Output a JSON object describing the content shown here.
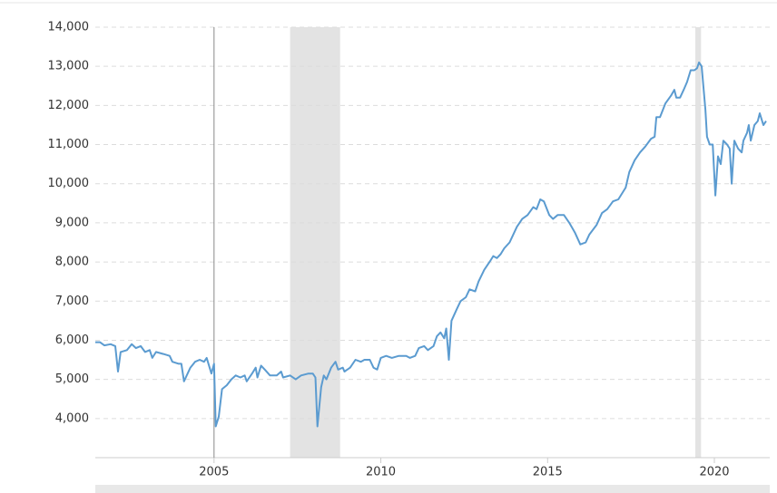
{
  "chart_data": {
    "type": "line",
    "x": [
      2001.44,
      2001.58,
      2001.71,
      2001.9,
      2002.04,
      2002.12,
      2002.2,
      2002.39,
      2002.53,
      2002.66,
      2002.8,
      2002.93,
      2003.07,
      2003.15,
      2003.26,
      2003.48,
      2003.67,
      2003.75,
      2003.94,
      2004.02,
      2004.1,
      2004.29,
      2004.43,
      2004.57,
      2004.7,
      2004.78,
      2004.92,
      2005.0,
      2005.05,
      2005.14,
      2005.24,
      2005.38,
      2005.52,
      2005.65,
      2005.79,
      2005.92,
      2005.98,
      2006.14,
      2006.25,
      2006.3,
      2006.41,
      2006.52,
      2006.68,
      2006.88,
      2007.01,
      2007.07,
      2007.28,
      2007.45,
      2007.61,
      2007.83,
      2007.96,
      2008.04,
      2008.1,
      2008.21,
      2008.29,
      2008.37,
      2008.51,
      2008.64,
      2008.72,
      2008.86,
      2008.91,
      2009.08,
      2009.24,
      2009.4,
      2009.51,
      2009.67,
      2009.78,
      2009.89,
      2010.0,
      2010.16,
      2010.33,
      2010.54,
      2010.76,
      2010.87,
      2011.03,
      2011.14,
      2011.3,
      2011.41,
      2011.58,
      2011.68,
      2011.79,
      2011.9,
      2011.96,
      2012.04,
      2012.12,
      2012.28,
      2012.39,
      2012.55,
      2012.66,
      2012.83,
      2012.93,
      2013.1,
      2013.26,
      2013.37,
      2013.48,
      2013.59,
      2013.7,
      2013.86,
      2013.97,
      2014.08,
      2014.24,
      2014.4,
      2014.57,
      2014.67,
      2014.78,
      2014.89,
      2015.05,
      2015.16,
      2015.3,
      2015.49,
      2015.65,
      2015.82,
      2015.98,
      2016.14,
      2016.25,
      2016.47,
      2016.63,
      2016.79,
      2016.96,
      2017.12,
      2017.34,
      2017.45,
      2017.61,
      2017.77,
      2017.93,
      2018.1,
      2018.21,
      2018.26,
      2018.37,
      2018.53,
      2018.7,
      2018.8,
      2018.86,
      2018.97,
      2019.08,
      2019.18,
      2019.29,
      2019.4,
      2019.48,
      2019.54,
      2019.62,
      2019.73,
      2019.78,
      2019.86,
      2019.95,
      2020.03,
      2020.11,
      2020.19,
      2020.27,
      2020.38,
      2020.46,
      2020.52,
      2020.6,
      2020.71,
      2020.82,
      2020.87,
      2020.98,
      2021.03,
      2021.09,
      2021.2,
      2021.3,
      2021.36,
      2021.47,
      2021.55
    ],
    "values": [
      5950,
      5950,
      5870,
      5900,
      5850,
      5200,
      5700,
      5750,
      5900,
      5800,
      5850,
      5700,
      5750,
      5550,
      5700,
      5650,
      5600,
      5450,
      5400,
      5400,
      4950,
      5300,
      5450,
      5500,
      5450,
      5550,
      5150,
      5400,
      3800,
      4050,
      4750,
      4850,
      5000,
      5100,
      5050,
      5100,
      4950,
      5150,
      5300,
      5050,
      5350,
      5250,
      5100,
      5100,
      5200,
      5050,
      5100,
      5000,
      5100,
      5150,
      5150,
      5050,
      3800,
      4800,
      5100,
      5000,
      5300,
      5450,
      5250,
      5300,
      5200,
      5300,
      5500,
      5450,
      5500,
      5500,
      5300,
      5250,
      5550,
      5600,
      5550,
      5600,
      5600,
      5550,
      5600,
      5800,
      5850,
      5750,
      5850,
      6100,
      6200,
      6050,
      6300,
      5500,
      6500,
      6800,
      7000,
      7100,
      7300,
      7250,
      7500,
      7800,
      8000,
      8150,
      8100,
      8200,
      8350,
      8500,
      8700,
      8900,
      9100,
      9200,
      9400,
      9350,
      9600,
      9550,
      9200,
      9100,
      9200,
      9200,
      9000,
      8750,
      8450,
      8500,
      8700,
      8950,
      9250,
      9350,
      9550,
      9600,
      9900,
      10300,
      10600,
      10800,
      10950,
      11150,
      11200,
      11700,
      11700,
      12050,
      12250,
      12400,
      12200,
      12200,
      12400,
      12600,
      12900,
      12900,
      12950,
      13100,
      13000,
      11900,
      11200,
      11000,
      11000,
      9700,
      10700,
      10500,
      11100,
      11000,
      10900,
      10000,
      11100,
      10900,
      10800,
      11100,
      11300,
      11500,
      11100,
      11500,
      11600,
      11800,
      11500,
      11600
    ],
    "color": "#5b9bd0",
    "shaded_ranges": [
      [
        2007.28,
        2008.78
      ],
      [
        2019.43,
        2019.6
      ]
    ],
    "marker_x": 2005,
    "xlim": [
      2001.44,
      2021.66
    ],
    "xticks": [
      2005,
      2010,
      2015,
      2020
    ],
    "ylim": [
      3000,
      14000
    ],
    "yticks": [
      {
        "value": 4000,
        "label": "4,000"
      },
      {
        "value": 5000,
        "label": "5,000"
      },
      {
        "value": 6000,
        "label": "6,000"
      },
      {
        "value": 7000,
        "label": "7,000"
      },
      {
        "value": 8000,
        "label": "8,000"
      },
      {
        "value": 9000,
        "label": "9,000"
      },
      {
        "value": 10000,
        "label": "10,000"
      },
      {
        "value": 11000,
        "label": "11,000"
      },
      {
        "value": 12000,
        "label": "12,000"
      },
      {
        "value": 13000,
        "label": "13,000"
      },
      {
        "value": 14000,
        "label": "14,000"
      }
    ],
    "grid": true
  }
}
